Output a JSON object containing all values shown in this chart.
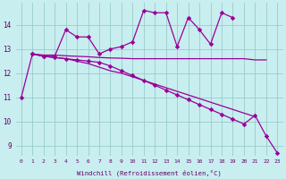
{
  "xlabel": "Windchill (Refroidissement éolien,°C)",
  "bg_color": "#c8eef0",
  "line_color": "#990099",
  "grid_color": "#99cccc",
  "ylim": [
    8.6,
    14.9
  ],
  "xlim": [
    -0.5,
    23.5
  ],
  "hours": [
    0,
    1,
    2,
    3,
    4,
    5,
    6,
    7,
    8,
    9,
    10,
    11,
    12,
    13,
    14,
    15,
    16,
    17,
    18,
    19,
    20,
    21,
    22,
    23
  ],
  "line_jagged": [
    null,
    12.8,
    12.7,
    12.7,
    13.8,
    13.5,
    13.5,
    12.8,
    13.0,
    13.1,
    13.3,
    14.6,
    14.5,
    14.5,
    13.1,
    14.3,
    13.8,
    13.2,
    14.5,
    14.3,
    null,
    null,
    null,
    null
  ],
  "line_flat": [
    null,
    12.8,
    12.75,
    12.75,
    12.72,
    12.7,
    12.68,
    12.65,
    12.63,
    12.62,
    12.6,
    12.6,
    12.6,
    12.6,
    12.6,
    12.6,
    12.6,
    12.6,
    12.6,
    12.6,
    12.6,
    12.55,
    12.55,
    null
  ],
  "line_mid_decline": [
    null,
    12.8,
    12.7,
    12.65,
    12.6,
    12.5,
    12.4,
    12.25,
    12.1,
    12.0,
    11.85,
    11.7,
    11.55,
    11.4,
    11.25,
    11.1,
    10.95,
    10.8,
    10.65,
    10.5,
    10.35,
    10.2,
    null,
    null
  ],
  "line_steep_decline": [
    11.0,
    12.8,
    12.7,
    12.65,
    12.6,
    12.55,
    12.5,
    12.45,
    12.3,
    12.1,
    11.9,
    11.7,
    11.5,
    11.3,
    11.1,
    10.9,
    10.7,
    10.5,
    10.3,
    10.1,
    9.9,
    10.25,
    9.4,
    8.7
  ],
  "yticks": [
    9,
    10,
    11,
    12,
    13,
    14
  ],
  "xticks": [
    0,
    1,
    2,
    3,
    4,
    5,
    6,
    7,
    8,
    9,
    10,
    11,
    12,
    13,
    14,
    15,
    16,
    17,
    18,
    19,
    20,
    21,
    22,
    23
  ]
}
